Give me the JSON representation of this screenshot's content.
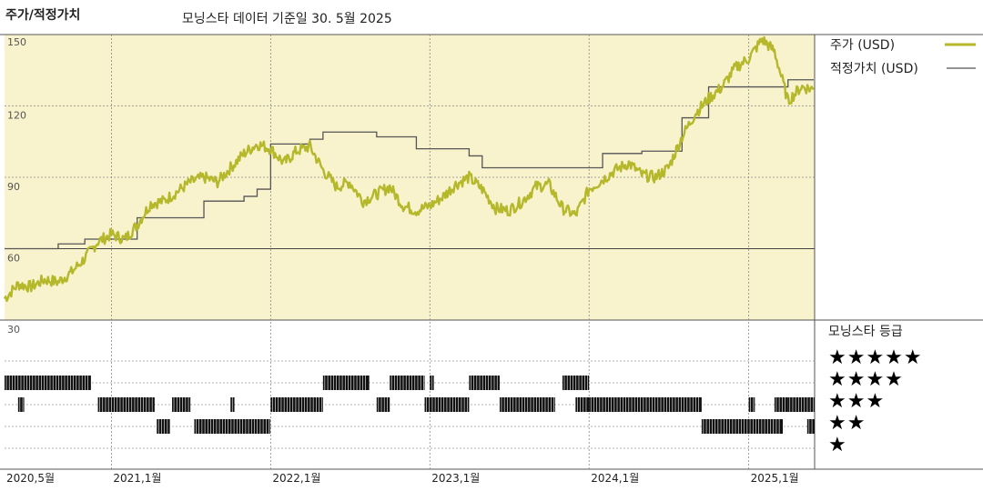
{
  "header": {
    "title": "주가/적정가치",
    "subtitle": "모닝스타 데이터 기준일 30. 5월 2025"
  },
  "legend": {
    "price_label": "주가 (USD)",
    "fair_label": "적정가치 (USD)",
    "rating_title": "모닝스타 등급",
    "star_rows": [
      "★★★★★",
      "★★★★",
      "★★★",
      "★★",
      "★"
    ]
  },
  "colors": {
    "price": "#b5b82a",
    "fair": "#555555",
    "panel_bg": "#f8f3cd",
    "rating_bar": "#111111"
  },
  "chart_data": {
    "type": "line",
    "x_range": [
      "2020-05-01",
      "2025-06-01"
    ],
    "ylim": [
      30,
      150
    ],
    "yticks": [
      30,
      60,
      90,
      120,
      150
    ],
    "xticks": [
      {
        "date": "2020-05-01",
        "label": "2020,5월"
      },
      {
        "date": "2021-01-01",
        "label": "2021,1월"
      },
      {
        "date": "2022-01-01",
        "label": "2022,1월"
      },
      {
        "date": "2023-01-01",
        "label": "2023,1월"
      },
      {
        "date": "2024-01-01",
        "label": "2024,1월"
      },
      {
        "date": "2025-01-01",
        "label": "2025,1월"
      }
    ],
    "series": [
      {
        "name": "주가 (USD)",
        "points": [
          [
            "2020-05-01",
            39
          ],
          [
            "2020-06-01",
            45
          ],
          [
            "2020-07-01",
            44
          ],
          [
            "2020-08-01",
            47
          ],
          [
            "2020-09-01",
            46
          ],
          [
            "2020-10-01",
            50
          ],
          [
            "2020-11-01",
            56
          ],
          [
            "2020-12-01",
            63
          ],
          [
            "2021-01-01",
            66
          ],
          [
            "2021-02-01",
            64
          ],
          [
            "2021-03-01",
            70
          ],
          [
            "2021-04-01",
            79
          ],
          [
            "2021-05-01",
            80
          ],
          [
            "2021-06-01",
            84
          ],
          [
            "2021-07-01",
            88
          ],
          [
            "2021-08-01",
            90
          ],
          [
            "2021-09-01",
            88
          ],
          [
            "2021-10-01",
            94
          ],
          [
            "2021-11-01",
            100
          ],
          [
            "2021-12-01",
            104
          ],
          [
            "2022-01-01",
            102
          ],
          [
            "2022-02-01",
            96
          ],
          [
            "2022-03-01",
            101
          ],
          [
            "2022-04-01",
            103
          ],
          [
            "2022-05-01",
            93
          ],
          [
            "2022-06-01",
            86
          ],
          [
            "2022-07-01",
            88
          ],
          [
            "2022-08-01",
            80
          ],
          [
            "2022-09-01",
            83
          ],
          [
            "2022-10-01",
            86
          ],
          [
            "2022-11-01",
            78
          ],
          [
            "2022-12-01",
            76
          ],
          [
            "2023-01-01",
            78
          ],
          [
            "2023-02-01",
            82
          ],
          [
            "2023-03-01",
            87
          ],
          [
            "2023-04-01",
            90
          ],
          [
            "2023-05-01",
            85
          ],
          [
            "2023-06-01",
            77
          ],
          [
            "2023-07-01",
            76
          ],
          [
            "2023-08-01",
            80
          ],
          [
            "2023-09-01",
            86
          ],
          [
            "2023-10-01",
            87
          ],
          [
            "2023-11-01",
            77
          ],
          [
            "2023-12-01",
            74
          ],
          [
            "2024-01-01",
            85
          ],
          [
            "2024-02-01",
            89
          ],
          [
            "2024-03-01",
            93
          ],
          [
            "2024-04-01",
            96
          ],
          [
            "2024-05-01",
            91
          ],
          [
            "2024-06-01",
            90
          ],
          [
            "2024-07-01",
            94
          ],
          [
            "2024-08-01",
            107
          ],
          [
            "2024-09-01",
            117
          ],
          [
            "2024-10-01",
            123
          ],
          [
            "2024-11-01",
            128
          ],
          [
            "2024-12-01",
            136
          ],
          [
            "2025-01-01",
            140
          ],
          [
            "2025-02-01",
            148
          ],
          [
            "2025-03-01",
            143
          ],
          [
            "2025-04-01",
            122
          ],
          [
            "2025-05-01",
            128
          ],
          [
            "2025-05-30",
            127
          ]
        ]
      },
      {
        "name": "적정가치 (USD)",
        "steps": [
          [
            "2020-05-01",
            60
          ],
          [
            "2020-09-01",
            62
          ],
          [
            "2020-11-01",
            64
          ],
          [
            "2021-03-01",
            73
          ],
          [
            "2021-08-01",
            80
          ],
          [
            "2021-11-01",
            82
          ],
          [
            "2021-12-01",
            85
          ],
          [
            "2022-01-01",
            104
          ],
          [
            "2022-04-01",
            106
          ],
          [
            "2022-05-01",
            109
          ],
          [
            "2022-09-01",
            107
          ],
          [
            "2022-12-01",
            102
          ],
          [
            "2023-04-01",
            99
          ],
          [
            "2023-05-01",
            94
          ],
          [
            "2024-01-01",
            94
          ],
          [
            "2024-02-01",
            100
          ],
          [
            "2024-05-01",
            101
          ],
          [
            "2024-08-01",
            115
          ],
          [
            "2024-10-01",
            128
          ],
          [
            "2025-04-01",
            131
          ],
          [
            "2025-05-15",
            131
          ]
        ]
      }
    ],
    "rating_bars": [
      {
        "stars": 4,
        "start": "2020-05-01",
        "end": "2020-11-15"
      },
      {
        "stars": 3,
        "start": "2020-06-01",
        "end": "2020-06-15"
      },
      {
        "stars": 3,
        "start": "2020-12-01",
        "end": "2021-04-10"
      },
      {
        "stars": 2,
        "start": "2021-04-15",
        "end": "2021-05-15"
      },
      {
        "stars": 3,
        "start": "2021-05-20",
        "end": "2021-07-01"
      },
      {
        "stars": 2,
        "start": "2021-07-10",
        "end": "2021-12-31"
      },
      {
        "stars": 3,
        "start": "2021-10-01",
        "end": "2021-10-10"
      },
      {
        "stars": 3,
        "start": "2022-01-01",
        "end": "2022-05-01"
      },
      {
        "stars": 4,
        "start": "2022-05-01",
        "end": "2022-08-15"
      },
      {
        "stars": 3,
        "start": "2022-09-01",
        "end": "2022-10-01"
      },
      {
        "stars": 4,
        "start": "2022-10-01",
        "end": "2022-12-20"
      },
      {
        "stars": 3,
        "start": "2022-12-20",
        "end": "2023-04-01"
      },
      {
        "stars": 4,
        "start": "2023-01-01",
        "end": "2023-01-10"
      },
      {
        "stars": 4,
        "start": "2023-04-01",
        "end": "2023-06-10"
      },
      {
        "stars": 3,
        "start": "2023-06-10",
        "end": "2023-10-15"
      },
      {
        "stars": 4,
        "start": "2023-11-01",
        "end": "2024-01-01"
      },
      {
        "stars": 3,
        "start": "2023-12-01",
        "end": "2024-01-01"
      },
      {
        "stars": 3,
        "start": "2024-01-01",
        "end": "2024-09-15"
      },
      {
        "stars": 2,
        "start": "2024-09-15",
        "end": "2025-03-01"
      },
      {
        "stars": 3,
        "start": "2025-01-01",
        "end": "2025-01-15"
      },
      {
        "stars": 2,
        "start": "2025-03-01",
        "end": "2025-03-20"
      },
      {
        "stars": 3,
        "start": "2025-03-01",
        "end": "2025-04-01"
      },
      {
        "stars": 3,
        "start": "2025-04-01",
        "end": "2025-06-01"
      },
      {
        "stars": 2,
        "start": "2025-05-15",
        "end": "2025-06-01"
      }
    ]
  }
}
